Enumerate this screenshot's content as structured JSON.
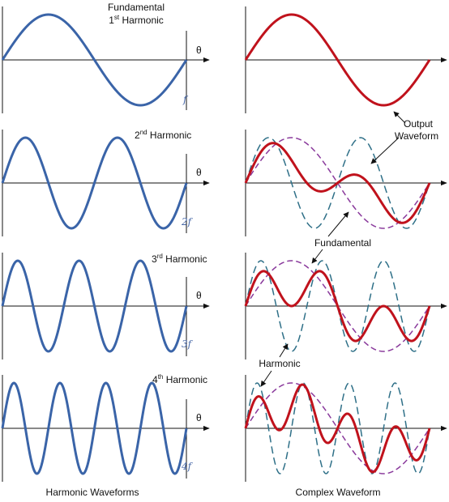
{
  "colors": {
    "harmonic_wave": "#3a64a8",
    "output_wave": "#c0121c",
    "fundamental_dashed": "#8a3a9c",
    "harmonic_dashed": "#2f7088",
    "axis": "#111111"
  },
  "axis_label": "θ",
  "left_rows": [
    {
      "title_line1": "Fundamental",
      "title_line2_pre": "1",
      "title_line2_sup": "st",
      "title_line2_post": " Harmonic",
      "freq_label": "f",
      "cycles": 1
    },
    {
      "title_pre": "2",
      "title_sup": "nd",
      "title_post": " Harmonic",
      "freq_label": "2f",
      "cycles": 2
    },
    {
      "title_pre": "3",
      "title_sup": "rd",
      "title_post": " Harmonic",
      "freq_label": "3f",
      "cycles": 3
    },
    {
      "title_pre": "4",
      "title_sup": "th",
      "title_post": " Harmonic",
      "freq_label": "4f",
      "cycles": 4
    }
  ],
  "right_rows": [
    {
      "harmonic": 1
    },
    {
      "harmonic": 2
    },
    {
      "harmonic": 3
    },
    {
      "harmonic": 4
    }
  ],
  "annotations": {
    "output_waveform_line1": "Output",
    "output_waveform_line2": "Waveform",
    "fundamental": "Fundamental",
    "harmonic": "Harmonic"
  },
  "captions": {
    "left": "Harmonic Waveforms",
    "right": "Complex Waveform"
  }
}
